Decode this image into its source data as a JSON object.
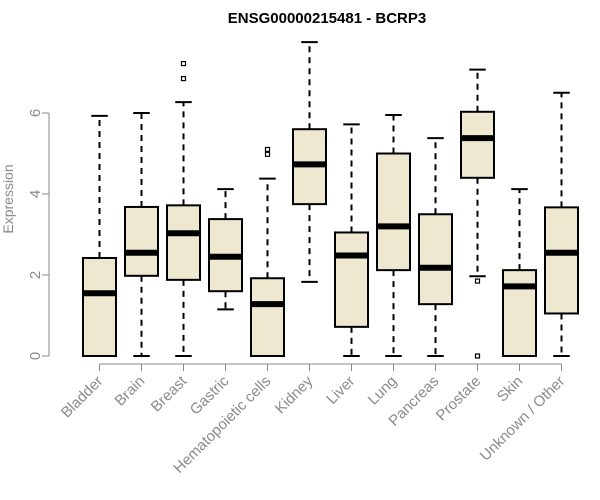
{
  "chart_data": {
    "type": "boxplot",
    "title": "ENSG00000215481 - BCRP3",
    "xlabel": "",
    "ylabel": "Expression",
    "ylim": [
      0,
      7.8
    ],
    "yticks": [
      0,
      2,
      4,
      6
    ],
    "box_fill": "#ede8cf",
    "stroke_color": "#000000",
    "axis_color": "#8a8a8a",
    "categories": [
      "Bladder",
      "Brain",
      "Breast",
      "Gastric",
      "Hematopoietic cells",
      "Kidney",
      "Liver",
      "Lung",
      "Pancreas",
      "Prostate",
      "Skin",
      "Unknown / Other"
    ],
    "series": [
      {
        "name": "Bladder",
        "min": 0,
        "q1": 0,
        "median": 1.55,
        "q3": 2.42,
        "max": 5.93,
        "outliers": []
      },
      {
        "name": "Brain",
        "min": 0,
        "q1": 1.98,
        "median": 2.55,
        "q3": 3.68,
        "max": 6.0,
        "outliers": []
      },
      {
        "name": "Breast",
        "min": 0,
        "q1": 1.88,
        "median": 3.03,
        "q3": 3.72,
        "max": 6.27,
        "outliers": [
          6.85,
          7.22
        ]
      },
      {
        "name": "Gastric",
        "min": 1.15,
        "q1": 1.6,
        "median": 2.45,
        "q3": 3.38,
        "max": 4.12,
        "outliers": []
      },
      {
        "name": "Hematopoietic cells",
        "min": 0,
        "q1": 0,
        "median": 1.28,
        "q3": 1.92,
        "max": 4.38,
        "outliers": [
          4.98,
          5.1
        ]
      },
      {
        "name": "Kidney",
        "min": 1.83,
        "q1": 3.75,
        "median": 4.73,
        "q3": 5.6,
        "max": 7.75,
        "outliers": []
      },
      {
        "name": "Liver",
        "min": 0,
        "q1": 0.72,
        "median": 2.48,
        "q3": 3.05,
        "max": 5.72,
        "outliers": []
      },
      {
        "name": "Lung",
        "min": 0,
        "q1": 2.12,
        "median": 3.2,
        "q3": 5.0,
        "max": 5.95,
        "outliers": []
      },
      {
        "name": "Pancreas",
        "min": 0,
        "q1": 1.28,
        "median": 2.18,
        "q3": 3.5,
        "max": 5.38,
        "outliers": []
      },
      {
        "name": "Prostate",
        "min": 1.97,
        "q1": 4.4,
        "median": 5.38,
        "q3": 6.03,
        "max": 7.07,
        "outliers": [
          1.85,
          0.0
        ]
      },
      {
        "name": "Skin",
        "min": 0,
        "q1": 0,
        "median": 1.72,
        "q3": 2.12,
        "max": 4.12,
        "outliers": []
      },
      {
        "name": "Unknown / Other",
        "min": 0,
        "q1": 1.05,
        "median": 2.55,
        "q3": 3.67,
        "max": 6.5,
        "outliers": []
      }
    ]
  }
}
